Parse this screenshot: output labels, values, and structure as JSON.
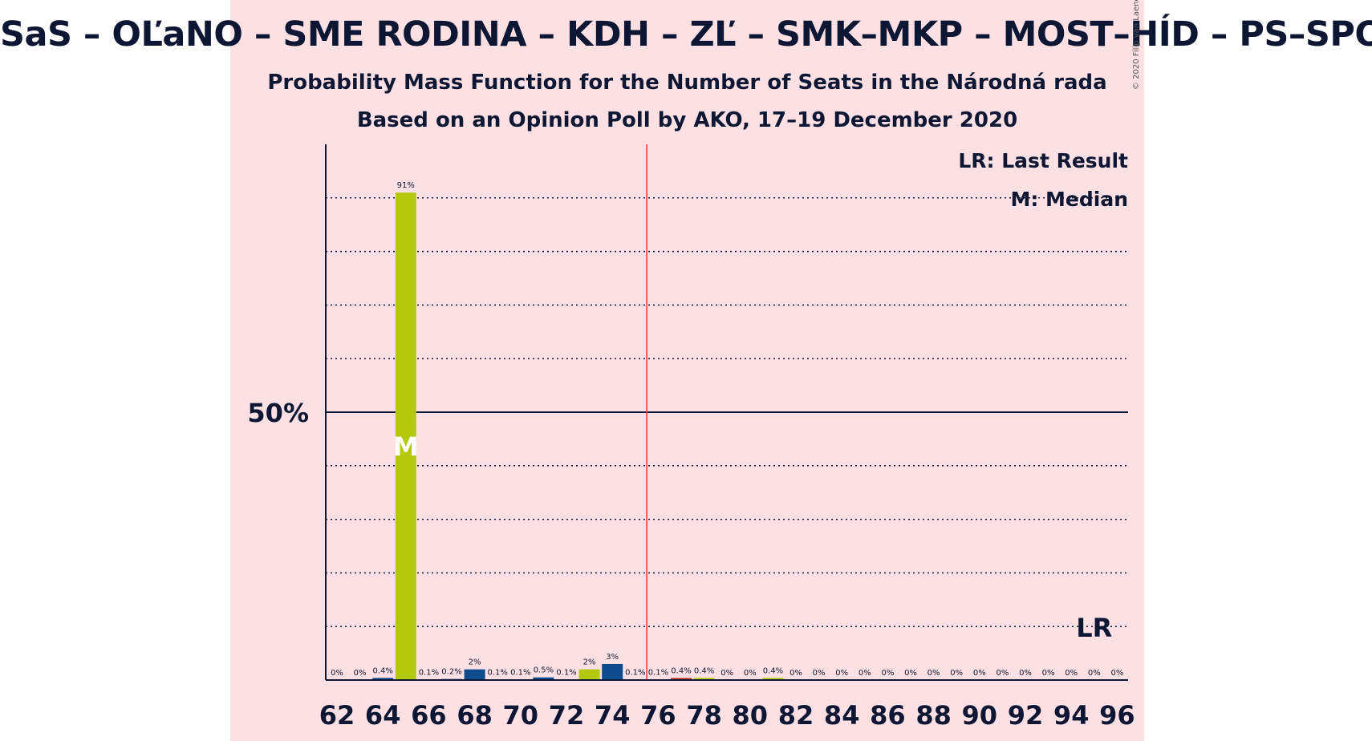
{
  "title": "SaS – OĽaNO – SME RODINA – KDH – ZĽ – SMK–MKP – MOST–HÍD – PS–SPOLU",
  "subtitle1": "Probability Mass Function for the Number of Seats in the Národná rada",
  "subtitle2": "Based on an Opinion Poll by AKO, 17–19 December 2020",
  "copyright": "© 2020 Filip van Laenen",
  "legend": {
    "last_result": "LR: Last Result",
    "median": "M: Median"
  },
  "colors": {
    "background_panel": "#fde0e3",
    "majority_line": "#e8333a",
    "green": "#b5c90c",
    "blue": "#0f4c8e",
    "text": "#0d1733"
  },
  "chart_data": {
    "type": "bar",
    "x": [
      62,
      63,
      64,
      65,
      66,
      67,
      68,
      69,
      70,
      71,
      72,
      73,
      74,
      75,
      76,
      77,
      78,
      79,
      80,
      81,
      82,
      83,
      84,
      85,
      86,
      87,
      88,
      89,
      90,
      91,
      92,
      93,
      94,
      95,
      96
    ],
    "values": [
      0,
      0,
      0.4,
      91,
      0.1,
      0.2,
      2,
      0.1,
      0.1,
      0.5,
      0.1,
      2,
      3,
      0.1,
      0.1,
      0.4,
      0.4,
      0,
      0,
      0.4,
      0,
      0,
      0,
      0,
      0,
      0,
      0,
      0,
      0,
      0,
      0,
      0,
      0,
      0,
      0
    ],
    "labels": [
      "0%",
      "0%",
      "0.4%",
      "91%",
      "0.1%",
      "0.2%",
      "2%",
      "0.1%",
      "0.1%",
      "0.5%",
      "0.1%",
      "2%",
      "3%",
      "0.1%",
      "0.1%",
      "0.4%",
      "0.4%",
      "0%",
      "0%",
      "0.4%",
      "0%",
      "0%",
      "0%",
      "0%",
      "0%",
      "0%",
      "0%",
      "0%",
      "0%",
      "0%",
      "0%",
      "0%",
      "0%",
      "0%",
      "0%"
    ],
    "bar_colors": [
      "#b5c90c",
      "#0f4c8e",
      "#0f4c8e",
      "#b5c90c",
      "#0f4c8e",
      "#0f4c8e",
      "#0f4c8e",
      "#0f4c8e",
      "#0f4c8e",
      "#0f4c8e",
      "#0f4c8e",
      "#b5c90c",
      "#0f4c8e",
      "#0f4c8e",
      "#0f4c8e",
      "#c0392b",
      "#b5c90c",
      "#0f4c8e",
      "#0f4c8e",
      "#b5c90c",
      "#0f4c8e",
      "#0f4c8e",
      "#0f4c8e",
      "#0f4c8e",
      "#0f4c8e",
      "#0f4c8e",
      "#0f4c8e",
      "#0f4c8e",
      "#0f4c8e",
      "#0f4c8e",
      "#0f4c8e",
      "#0f4c8e",
      "#0f4c8e",
      "#0f4c8e",
      "#0f4c8e"
    ],
    "x_ticks": [
      62,
      64,
      66,
      68,
      70,
      72,
      74,
      76,
      78,
      80,
      82,
      84,
      86,
      88,
      90,
      92,
      94,
      96
    ],
    "ylim": [
      0,
      100
    ],
    "gridlines": [
      10,
      20,
      30,
      40,
      60,
      70,
      80,
      90
    ],
    "y_tick_label": "50%",
    "y_tick_value": 50,
    "median_seat": 65,
    "median_marker": "M",
    "majority_seat": 76,
    "last_result_seat": 95,
    "last_result_marker": "LR"
  }
}
